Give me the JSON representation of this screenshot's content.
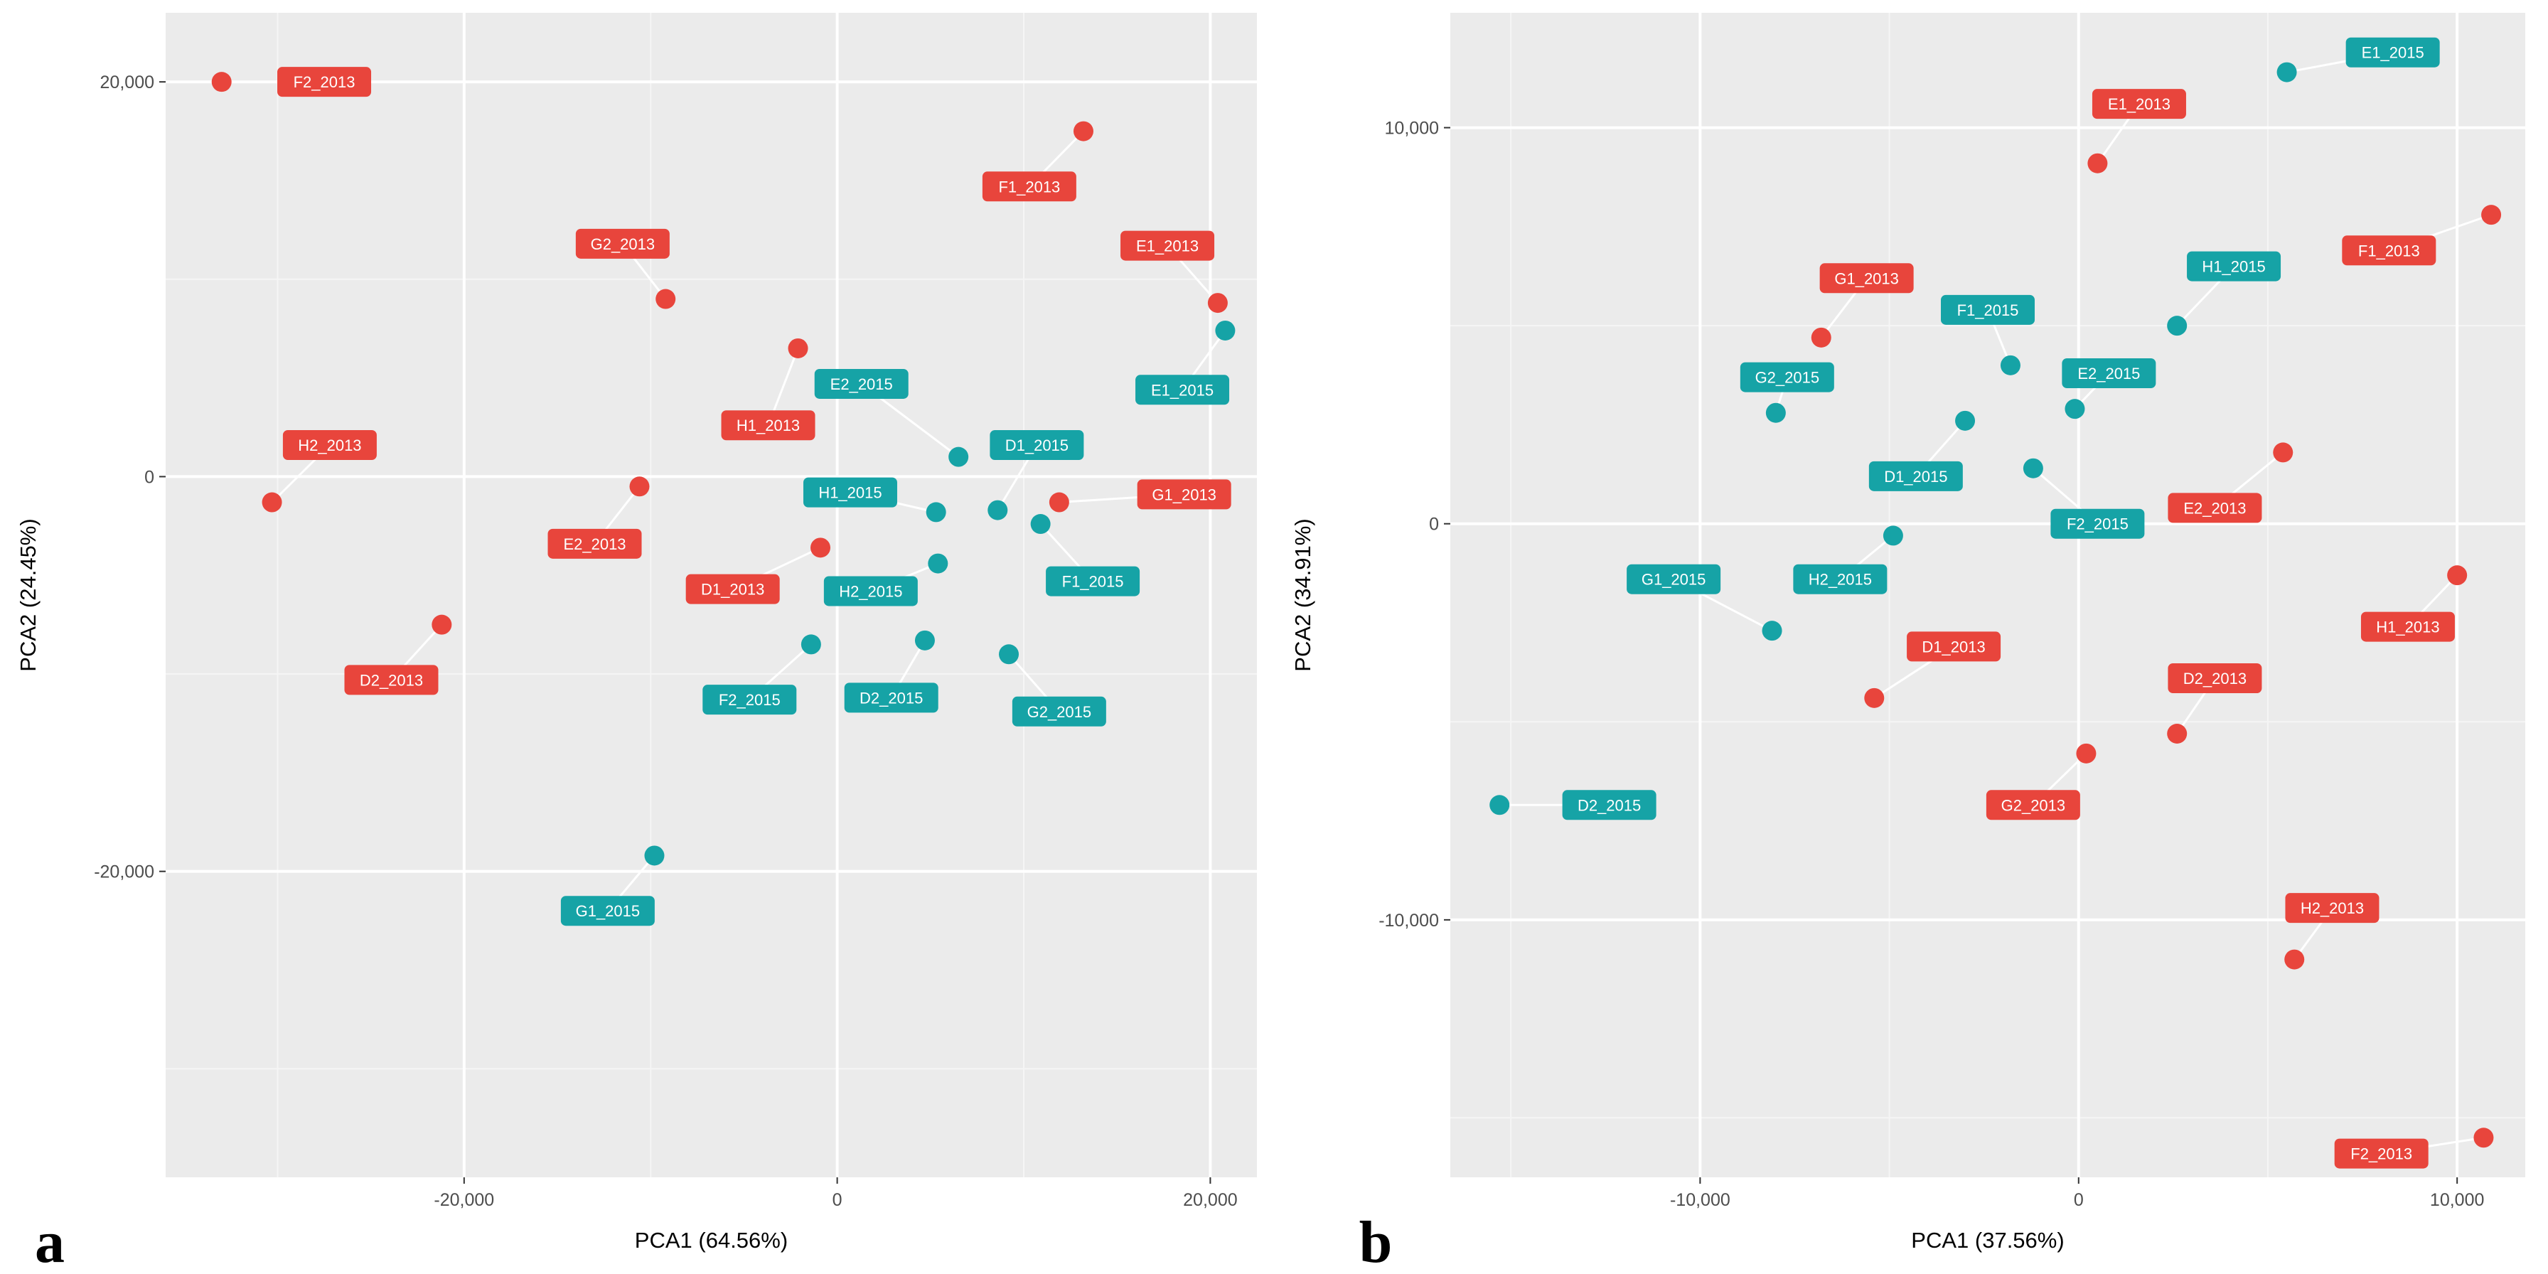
{
  "colors": {
    "2013": "#e8453c",
    "2015": "#16a3a6",
    "panel_bg": "#ebebeb",
    "grid_major": "#ffffff",
    "grid_minor": "#f5f5f5"
  },
  "chart_data": [
    {
      "type": "scatter",
      "panel_label": "a",
      "xlabel": "PCA1 (64.56%)",
      "ylabel": "PCA2 (24.45%)",
      "xlim": [
        -36000,
        22500
      ],
      "ylim": [
        -35500,
        23500
      ],
      "x_ticks": [
        -20000,
        0,
        20000
      ],
      "x_tick_labels": [
        "-20,000",
        "0",
        "20,000"
      ],
      "y_ticks": [
        -20000,
        0,
        20000
      ],
      "y_tick_labels": [
        "-20,000",
        "0",
        "20,000"
      ],
      "y_minor": [
        -30000,
        -10000,
        10000
      ],
      "x_minor": [
        -30000,
        -10000,
        10000
      ],
      "series": [
        {
          "name": "2013",
          "points": [
            {
              "label": "F2_2013",
              "x": -33000,
              "y": 20000,
              "lx": -27500,
              "ly": 20000
            },
            {
              "label": "F1_2013",
              "x": 13200,
              "y": 17500,
              "lx": 10300,
              "ly": 14700
            },
            {
              "label": "G2_2013",
              "x": -9200,
              "y": 9000,
              "lx": -11500,
              "ly": 11800
            },
            {
              "label": "E1_2013",
              "x": 20400,
              "y": 8800,
              "lx": 17700,
              "ly": 11700
            },
            {
              "label": "H1_2013",
              "x": -2100,
              "y": 6500,
              "lx": -3700,
              "ly": 2600
            },
            {
              "label": "H2_2013",
              "x": -30300,
              "y": -1300,
              "lx": -27200,
              "ly": 1600
            },
            {
              "label": "E2_2013",
              "x": -10600,
              "y": -500,
              "lx": -13000,
              "ly": -3400
            },
            {
              "label": "G1_2013",
              "x": 11900,
              "y": -1300,
              "lx": 18600,
              "ly": -900
            },
            {
              "label": "D1_2013",
              "x": -900,
              "y": -3600,
              "lx": -5600,
              "ly": -5700
            },
            {
              "label": "D2_2013",
              "x": -21200,
              "y": -7500,
              "lx": -23900,
              "ly": -10300
            }
          ]
        },
        {
          "name": "2015",
          "points": [
            {
              "label": "E1_2015",
              "x": 20800,
              "y": 7400,
              "lx": 18500,
              "ly": 4400
            },
            {
              "label": "E2_2015",
              "x": 6500,
              "y": 1000,
              "lx": 1300,
              "ly": 4700
            },
            {
              "label": "D1_2015",
              "x": 8600,
              "y": -1700,
              "lx": 10700,
              "ly": 1600
            },
            {
              "label": "H1_2015",
              "x": 5300,
              "y": -1800,
              "lx": 700,
              "ly": -800
            },
            {
              "label": "F1_2015",
              "x": 10900,
              "y": -2400,
              "lx": 13700,
              "ly": -5300
            },
            {
              "label": "H2_2015",
              "x": 5400,
              "y": -4400,
              "lx": 1800,
              "ly": -5800
            },
            {
              "label": "F2_2015",
              "x": -1400,
              "y": -8500,
              "lx": -4700,
              "ly": -11300
            },
            {
              "label": "D2_2015",
              "x": 4700,
              "y": -8300,
              "lx": 2900,
              "ly": -11200
            },
            {
              "label": "G2_2015",
              "x": 9200,
              "y": -9000,
              "lx": 11900,
              "ly": -11900
            },
            {
              "label": "G1_2015",
              "x": -9800,
              "y": -19200,
              "lx": -12300,
              "ly": -22000
            }
          ]
        }
      ]
    },
    {
      "type": "scatter",
      "panel_label": "b",
      "xlabel": "PCA1 (37.56%)",
      "ylabel": "PCA2 (34.91%)",
      "xlim": [
        -16600,
        11800
      ],
      "ylim": [
        -16500,
        12900
      ],
      "x_ticks": [
        -10000,
        0,
        10000
      ],
      "x_tick_labels": [
        "-10,000",
        "0",
        "10,000"
      ],
      "y_ticks": [
        -10000,
        0,
        10000
      ],
      "y_tick_labels": [
        "-10,000",
        "0",
        "10,000"
      ],
      "y_minor": [
        -15000,
        -5000,
        5000
      ],
      "x_minor": [
        -15000,
        -5000,
        5000
      ],
      "series": [
        {
          "name": "2013",
          "points": [
            {
              "label": "E1_2013",
              "x": 500,
              "y": 9100,
              "lx": 1600,
              "ly": 10600
            },
            {
              "label": "F1_2013",
              "x": 10900,
              "y": 7800,
              "lx": 8200,
              "ly": 6900
            },
            {
              "label": "G1_2013",
              "x": -6800,
              "y": 4700,
              "lx": -5600,
              "ly": 6200
            },
            {
              "label": "E2_2013",
              "x": 5400,
              "y": 1800,
              "lx": 3600,
              "ly": 400
            },
            {
              "label": "H1_2013",
              "x": 10000,
              "y": -1300,
              "lx": 8700,
              "ly": -2600
            },
            {
              "label": "D1_2013",
              "x": -5400,
              "y": -4400,
              "lx": -3300,
              "ly": -3100
            },
            {
              "label": "D2_2013",
              "x": 2600,
              "y": -5300,
              "lx": 3600,
              "ly": -3900
            },
            {
              "label": "G2_2013",
              "x": 200,
              "y": -5800,
              "lx": -1200,
              "ly": -7100
            },
            {
              "label": "H2_2013",
              "x": 5700,
              "y": -11000,
              "lx": 6700,
              "ly": -9700
            },
            {
              "label": "F2_2013",
              "x": 10700,
              "y": -15500,
              "lx": 8000,
              "ly": -15900
            }
          ]
        },
        {
          "name": "2015",
          "points": [
            {
              "label": "E1_2015",
              "x": 5500,
              "y": 11400,
              "lx": 8300,
              "ly": 11900
            },
            {
              "label": "H1_2015",
              "x": 2600,
              "y": 5000,
              "lx": 4100,
              "ly": 6500
            },
            {
              "label": "F1_2015",
              "x": -1800,
              "y": 4000,
              "lx": -2400,
              "ly": 5400
            },
            {
              "label": "G2_2015",
              "x": -8000,
              "y": 2800,
              "lx": -7700,
              "ly": 3700
            },
            {
              "label": "E2_2015",
              "x": -100,
              "y": 2900,
              "lx": 800,
              "ly": 3800
            },
            {
              "label": "D1_2015",
              "x": -3000,
              "y": 2600,
              "lx": -4300,
              "ly": 1200
            },
            {
              "label": "F2_2015",
              "x": -1200,
              "y": 1400,
              "lx": 500,
              "ly": 0
            },
            {
              "label": "H2_2015",
              "x": -4900,
              "y": -300,
              "lx": -6300,
              "ly": -1400
            },
            {
              "label": "G1_2015",
              "x": -8100,
              "y": -2700,
              "lx": -10700,
              "ly": -1400
            },
            {
              "label": "D2_2015",
              "x": -15300,
              "y": -7100,
              "lx": -12400,
              "ly": -7100
            }
          ]
        }
      ]
    }
  ]
}
